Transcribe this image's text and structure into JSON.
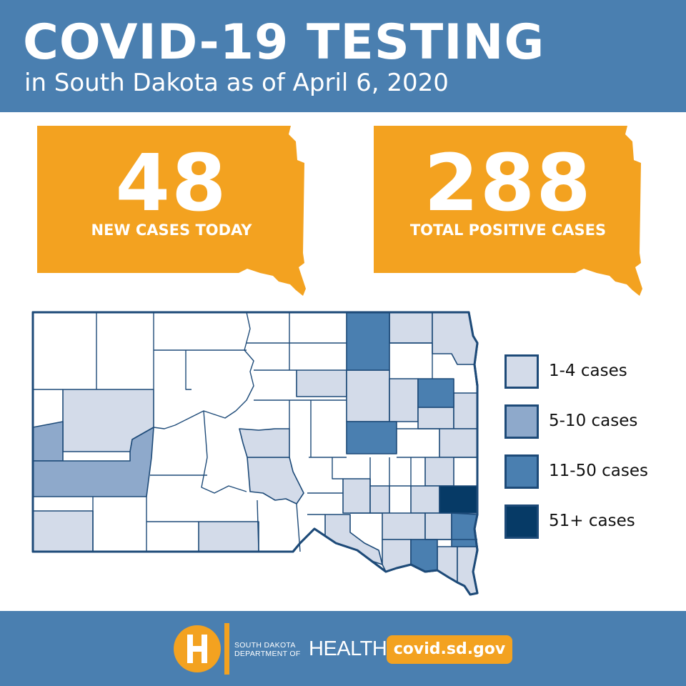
{
  "header": {
    "title": "COVID-19 TESTING",
    "subtitle": "in South Dakota as of April 6, 2020"
  },
  "stats": {
    "new_cases": {
      "value": "48",
      "label": "NEW CASES TODAY"
    },
    "total_cases": {
      "value": "288",
      "label": "TOTAL POSITIVE CASES"
    }
  },
  "legend": [
    {
      "label": "1-4 cases",
      "color": "#d3dbe9"
    },
    {
      "label": "5-10 cases",
      "color": "#8ea9cb"
    },
    {
      "label": "11-50 cases",
      "color": "#4a7fb0"
    },
    {
      "label": "51+ cases",
      "color": "#063a66"
    }
  ],
  "footer": {
    "org_line1": "SOUTH DAKOTA",
    "org_line2": "DEPARTMENT OF",
    "org_health": "HEALTH",
    "url": "covid.sd.gov"
  },
  "colors": {
    "brand_blue": "#4a7fb0",
    "orange": "#f3a220",
    "county_border": "#1d4a78",
    "white": "#ffffff"
  }
}
